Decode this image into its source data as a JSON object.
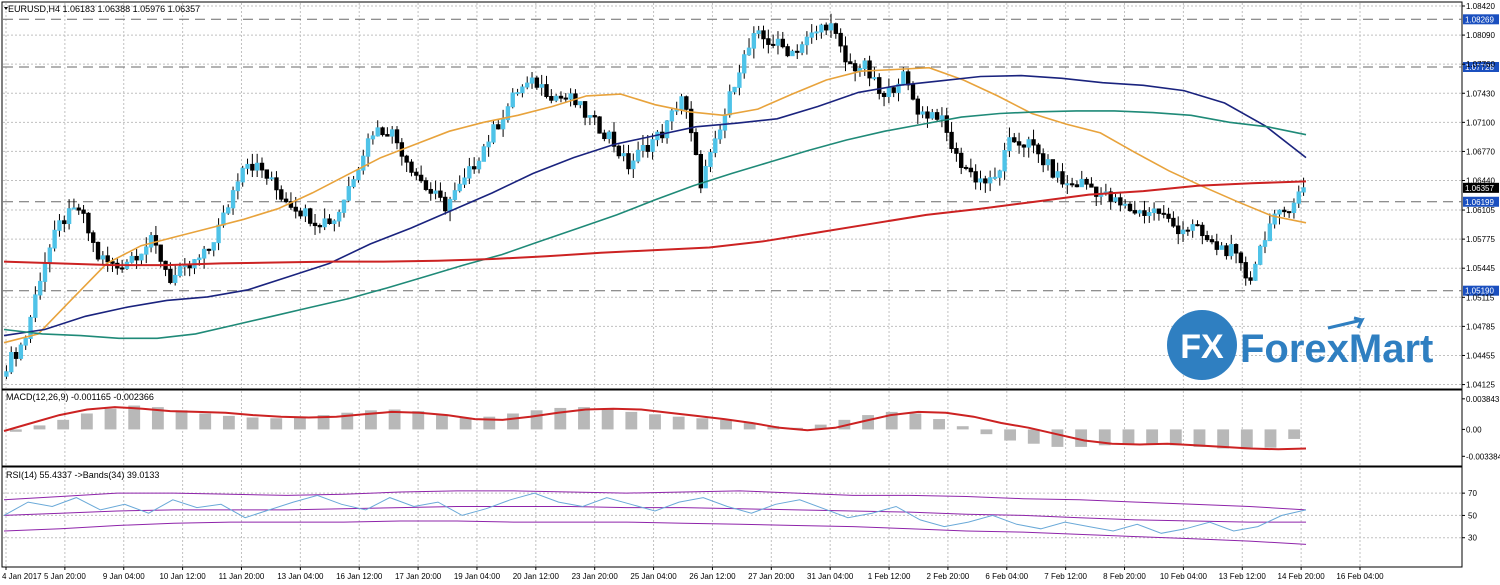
{
  "symbol_header": "EURUSD,H4  1.06183 1.06388 1.05976 1.06357",
  "macd_header": "MACD(12,26,9) -0.001165 -0.002366",
  "rsi_header": "RSI(14) 55.4337  ->Bands(34) 39.0133",
  "logo": {
    "text": "ForexMart",
    "badge_text": "FX"
  },
  "colors": {
    "bull": "#4fc3e8",
    "bear": "#000000",
    "ma_orange": "#e8a33c",
    "ma_navy": "#1a237e",
    "ma_teal": "#1f8a78",
    "ma_red": "#cc2222",
    "macd_signal": "#cc2222",
    "macd_hist": "#b8b8b8",
    "rsi_line": "#6aa9d8",
    "rsi_band": "#8e24aa",
    "logo_blue": "#2f7fc1"
  },
  "chart_data": [
    {
      "type": "candlestick",
      "title": "EURUSD,H4",
      "ohlc_last": {
        "open": 1.06183,
        "high": 1.06388,
        "low": 1.05976,
        "close": 1.06357
      },
      "ylim": [
        1.0412,
        1.0842
      ],
      "y_ticks": [
        "1.08420",
        "1.08090",
        "1.07760",
        "1.07430",
        "1.07100",
        "1.06770",
        "1.06440",
        "1.06105",
        "1.05775",
        "1.05445",
        "1.05115",
        "1.04785",
        "1.04455",
        "1.04125"
      ],
      "levels": [
        {
          "value": 1.08269,
          "label": "1.08269"
        },
        {
          "value": 1.07728,
          "label": "1.07728"
        },
        {
          "value": 1.06199,
          "label": "1.06199"
        },
        {
          "value": 1.0519,
          "label": "1.05190"
        }
      ],
      "price_marker": {
        "value": 1.06357,
        "label": "1.06357"
      },
      "x_labels": [
        "4 Jan 2017",
        "5 Jan 20:00",
        "9 Jan 04:00",
        "10 Jan 12:00",
        "11 Jan 20:00",
        "13 Jan 04:00",
        "16 Jan 12:00",
        "17 Jan 20:00",
        "19 Jan 04:00",
        "20 Jan 12:00",
        "23 Jan 20:00",
        "25 Jan 04:00",
        "26 Jan 12:00",
        "27 Jan 20:00",
        "31 Jan 04:00",
        "1 Feb 12:00",
        "2 Feb 20:00",
        "6 Feb 04:00",
        "7 Feb 12:00",
        "8 Feb 20:00",
        "10 Feb 04:00",
        "13 Feb 12:00",
        "14 Feb 20:00",
        "16 Feb 04:00"
      ],
      "close_anchors": [
        1.0435,
        1.0462,
        1.0548,
        1.0598,
        1.0612,
        1.0558,
        1.0545,
        1.056,
        1.0575,
        1.0532,
        1.0545,
        1.0562,
        1.0608,
        1.0668,
        1.0655,
        1.0628,
        1.0612,
        1.0598,
        1.06,
        1.065,
        1.07,
        1.0702,
        1.0665,
        1.0635,
        1.0615,
        1.064,
        1.0678,
        1.0712,
        1.0747,
        1.0755,
        1.074,
        1.0735,
        1.0712,
        1.0695,
        1.066,
        1.0683,
        1.07,
        1.0742,
        1.0642,
        1.0695,
        1.0768,
        1.0808,
        1.08,
        1.079,
        1.0806,
        1.0825,
        1.0775,
        1.0772,
        1.0735,
        1.0765,
        1.072,
        1.072,
        1.067,
        1.0648,
        1.064,
        1.069,
        1.0685,
        1.066,
        1.0638,
        1.0642,
        1.0628,
        1.0615,
        1.0608,
        1.061,
        1.059,
        1.059,
        1.057,
        1.0565,
        1.053,
        1.059,
        1.061,
        1.0636
      ],
      "series": [
        {
          "name": "MA fast",
          "color_key": "ma_orange",
          "values": [
            1.046,
            1.047,
            1.051,
            1.055,
            1.057,
            1.058,
            1.059,
            1.06,
            1.0612,
            1.063,
            1.065,
            1.067,
            1.0685,
            1.07,
            1.071,
            1.0718,
            1.0728,
            1.074,
            1.0742,
            1.073,
            1.0722,
            1.0718,
            1.0725,
            1.0742,
            1.0758,
            1.0768,
            1.077,
            1.0772,
            1.0758,
            1.074,
            1.072,
            1.0708,
            1.0698,
            1.0676,
            1.0655,
            1.0637,
            1.062,
            1.0604,
            1.0596
          ]
        },
        {
          "name": "MA mid",
          "color_key": "ma_navy",
          "values": [
            1.0468,
            1.0475,
            1.049,
            1.05,
            1.0508,
            1.0512,
            1.052,
            1.0535,
            1.055,
            1.0572,
            1.059,
            1.061,
            1.063,
            1.0652,
            1.067,
            1.0685,
            1.0695,
            1.0705,
            1.0709,
            1.0714,
            1.0728,
            1.0744,
            1.0752,
            1.0757,
            1.0762,
            1.0763,
            1.076,
            1.0755,
            1.0752,
            1.0746,
            1.0732,
            1.0706,
            1.067
          ]
        },
        {
          "name": "MA slow",
          "color_key": "ma_teal",
          "values": [
            1.0475,
            1.047,
            1.0468,
            1.0465,
            1.0465,
            1.047,
            1.048,
            1.049,
            1.05,
            1.051,
            1.0522,
            1.0535,
            1.0548,
            1.056,
            1.0575,
            1.059,
            1.0605,
            1.0622,
            1.0638,
            1.0652,
            1.0665,
            1.0678,
            1.069,
            1.07,
            1.0708,
            1.0716,
            1.072,
            1.0722,
            1.0723,
            1.0723,
            1.0721,
            1.0718,
            1.071,
            1.0705,
            1.0696
          ]
        },
        {
          "name": "MA long",
          "color_key": "ma_red",
          "values": [
            1.0552,
            1.055,
            1.0548,
            1.0548,
            1.055,
            1.0551,
            1.0552,
            1.0552,
            1.0553,
            1.0555,
            1.0558,
            1.0562,
            1.0565,
            1.0568,
            1.0575,
            1.0585,
            1.0595,
            1.0605,
            1.0612,
            1.062,
            1.0628,
            1.0632,
            1.0638,
            1.0641,
            1.0643
          ]
        }
      ]
    },
    {
      "type": "macd",
      "title": "MACD(12,26,9)",
      "values_shown": {
        "macd": -0.001165,
        "signal": -0.002366
      },
      "ylim": [
        -0.0041,
        0.0042
      ],
      "y_ticks": [
        "0.003843",
        "0.00",
        "-0.003384"
      ],
      "histogram": [
        -0.0003,
        0.0005,
        0.0012,
        0.002,
        0.0026,
        0.003,
        0.0028,
        0.0024,
        0.002,
        0.0017,
        0.0015,
        0.0014,
        0.0015,
        0.0018,
        0.0021,
        0.0024,
        0.0025,
        0.0023,
        0.0018,
        0.0015,
        0.0016,
        0.002,
        0.0024,
        0.0027,
        0.0028,
        0.0026,
        0.0022,
        0.0019,
        0.0016,
        0.0014,
        0.0012,
        0.0008,
        0.0004,
        0.0002,
        0.0006,
        0.0012,
        0.0018,
        0.0022,
        0.002,
        0.0013,
        0.0004,
        -0.0006,
        -0.0014,
        -0.0018,
        -0.0022,
        -0.0022,
        -0.002,
        -0.0018,
        -0.0018,
        -0.002,
        -0.0022,
        -0.0024,
        -0.0025,
        -0.0023,
        -0.0012
      ],
      "signal": [
        -0.0002,
        0.0008,
        0.0018,
        0.0025,
        0.0028,
        0.0026,
        0.0023,
        0.0022,
        0.0021,
        0.0018,
        0.0016,
        0.0015,
        0.0016,
        0.0019,
        0.0022,
        0.0021,
        0.0018,
        0.0013,
        0.0012,
        0.0016,
        0.0021,
        0.0025,
        0.0026,
        0.0025,
        0.0021,
        0.0017,
        0.0013,
        0.0008,
        0.0002,
        -0.0001,
        0.0002,
        0.001,
        0.0018,
        0.0022,
        0.0021,
        0.0016,
        0.0008,
        0.0002,
        -0.0006,
        -0.0014,
        -0.0018,
        -0.0019,
        -0.0018,
        -0.002,
        -0.0022,
        -0.0024,
        -0.0025,
        -0.0024
      ]
    },
    {
      "type": "rsi",
      "title": "RSI(14)",
      "values_shown": {
        "rsi": 55.4337,
        "bands": 39.0133
      },
      "ylim": [
        0,
        100
      ],
      "y_ticks": [
        70,
        50,
        30
      ],
      "rsi": [
        50,
        62,
        58,
        66,
        55,
        60,
        52,
        64,
        57,
        60,
        48,
        55,
        62,
        68,
        60,
        55,
        66,
        58,
        62,
        50,
        56,
        64,
        70,
        62,
        58,
        66,
        60,
        54,
        62,
        66,
        58,
        52,
        60,
        64,
        56,
        48,
        52,
        58,
        46,
        40,
        44,
        50,
        42,
        38,
        44,
        40,
        36,
        42,
        34,
        38,
        44,
        36,
        40,
        50,
        55
      ],
      "band_upper": [
        64,
        67,
        70,
        70,
        69,
        68,
        69,
        71,
        72,
        72,
        71,
        70,
        71,
        72,
        70,
        68,
        68,
        67,
        65,
        64,
        62,
        60,
        58,
        55
      ],
      "band_mid": [
        50,
        52,
        54,
        55,
        55,
        55,
        56,
        57,
        58,
        58,
        58,
        57,
        57,
        56,
        55,
        54,
        53,
        51,
        50,
        48,
        46,
        45,
        44,
        44
      ],
      "band_lower": [
        36,
        38,
        41,
        43,
        44,
        44,
        44,
        45,
        45,
        44,
        44,
        44,
        43,
        42,
        41,
        40,
        38,
        36,
        35,
        33,
        31,
        29,
        27,
        24
      ]
    }
  ]
}
